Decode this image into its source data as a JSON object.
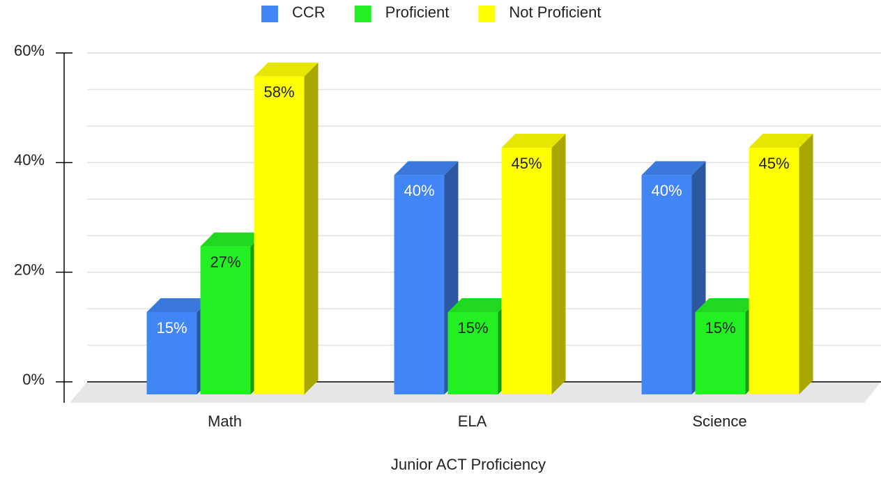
{
  "chart_data": {
    "type": "bar3d",
    "xlabel": "Junior ACT Proficiency",
    "categories": [
      "Math",
      "ELA",
      "Science"
    ],
    "series": [
      {
        "name": "CCR",
        "color": "#4285f4",
        "values": [
          15,
          40,
          40
        ],
        "value_labels": [
          "15%",
          "40%",
          "40%"
        ]
      },
      {
        "name": "Proficient",
        "color": "#22f022",
        "values": [
          27,
          15,
          15
        ],
        "value_labels": [
          "27%",
          "15%",
          "15%"
        ]
      },
      {
        "name": "Not Proficient",
        "color": "#ffff00",
        "values": [
          58,
          45,
          45
        ],
        "value_labels": [
          "58%",
          "45%",
          "45%"
        ]
      }
    ],
    "ylim": [
      0,
      60
    ],
    "yticks": [
      {
        "value": 0,
        "label": "0%"
      },
      {
        "value": 20,
        "label": "20%"
      },
      {
        "value": 40,
        "label": "40%"
      },
      {
        "value": 60,
        "label": "60%"
      }
    ],
    "grid": true,
    "legend": "top"
  }
}
